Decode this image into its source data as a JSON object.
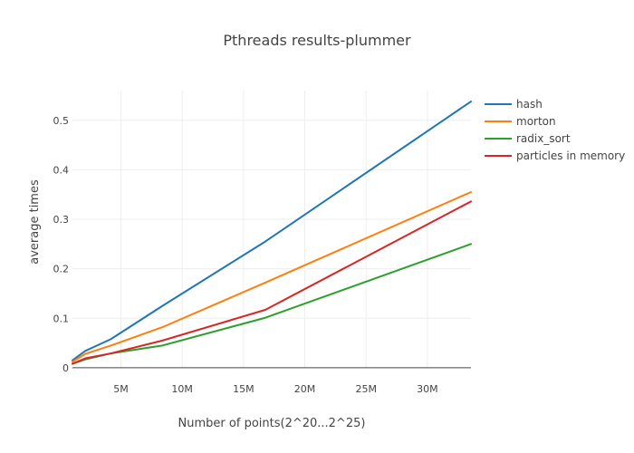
{
  "chart_data": {
    "type": "line",
    "title": "Pthreads results-plummer",
    "xlabel": "Number of points(2^20...2^25)",
    "ylabel": "average times",
    "x": [
      1048576,
      2097152,
      4194304,
      8388608,
      16777216,
      33554432
    ],
    "x_ticks": [
      5000000,
      10000000,
      15000000,
      20000000,
      25000000,
      30000000
    ],
    "x_tick_labels": [
      "5M",
      "10M",
      "15M",
      "20M",
      "25M",
      "30M"
    ],
    "y_ticks": [
      0,
      0.1,
      0.2,
      0.3,
      0.4,
      0.5
    ],
    "y_tick_labels": [
      "0",
      "0.1",
      "0.2",
      "0.3",
      "0.4",
      "0.5"
    ],
    "xlim": [
      1048576,
      33554432
    ],
    "ylim": [
      -0.002,
      0.56
    ],
    "grid": true,
    "legend_position": "right",
    "series": [
      {
        "name": "hash",
        "color": "#1f77b4",
        "values": [
          0.015,
          0.034,
          0.058,
          0.125,
          0.255,
          0.538
        ]
      },
      {
        "name": "morton",
        "color": "#ff7f0e",
        "values": [
          0.012,
          0.028,
          0.045,
          0.082,
          0.172,
          0.355
        ]
      },
      {
        "name": "radix_sort",
        "color": "#2ca02c",
        "values": [
          0.008,
          0.017,
          0.029,
          0.045,
          0.101,
          0.25
        ]
      },
      {
        "name": "particles in memory",
        "color": "#d62728",
        "values": [
          0.008,
          0.019,
          0.029,
          0.055,
          0.117,
          0.336
        ]
      }
    ]
  }
}
